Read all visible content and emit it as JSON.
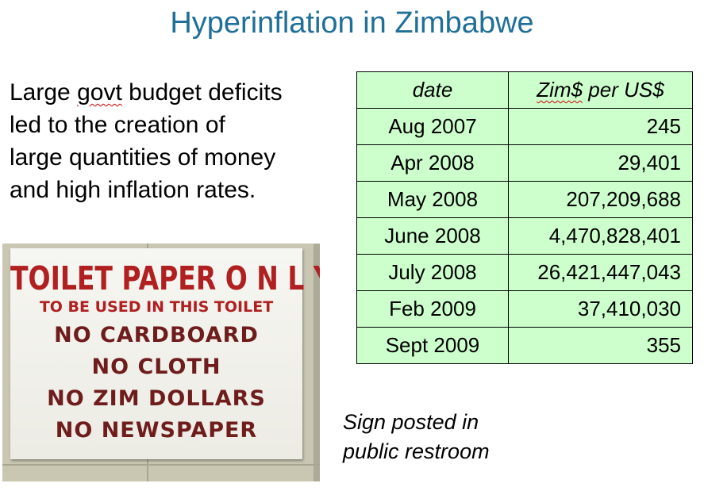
{
  "title": "Hyperinflation in Zimbabwe",
  "body": {
    "line1_pre": "Large ",
    "line1_flag": "govt",
    "line1_post": " budget deficits",
    "line2": "led to the creation of",
    "line3": "large quantities of money",
    "line4": "and high inflation rates."
  },
  "table": {
    "header_date": "date",
    "header_rate_flag": "Zim$",
    "header_rate_rest": " per US$",
    "rows": [
      {
        "date": "Aug 2007",
        "rate": "245"
      },
      {
        "date": "Apr 2008",
        "rate": "29,401"
      },
      {
        "date": "May 2008",
        "rate": "207,209,688"
      },
      {
        "date": "June 2008",
        "rate": "4,470,828,401"
      },
      {
        "date": "July 2008",
        "rate": "26,421,447,043"
      },
      {
        "date": "Feb 2009",
        "rate": "37,410,030"
      },
      {
        "date": "Sept 2009",
        "rate": "355"
      }
    ]
  },
  "sign": {
    "line1": "TOILET PAPER O N L Y",
    "line2": "TO BE USED IN THIS TOILET",
    "line3": "NO CARDBOARD",
    "line4": "NO CLOTH",
    "line5": "NO ZIM DOLLARS",
    "line6": "NO NEWSPAPER"
  },
  "caption": {
    "line1": "Sign posted in",
    "line2": "public restroom"
  }
}
